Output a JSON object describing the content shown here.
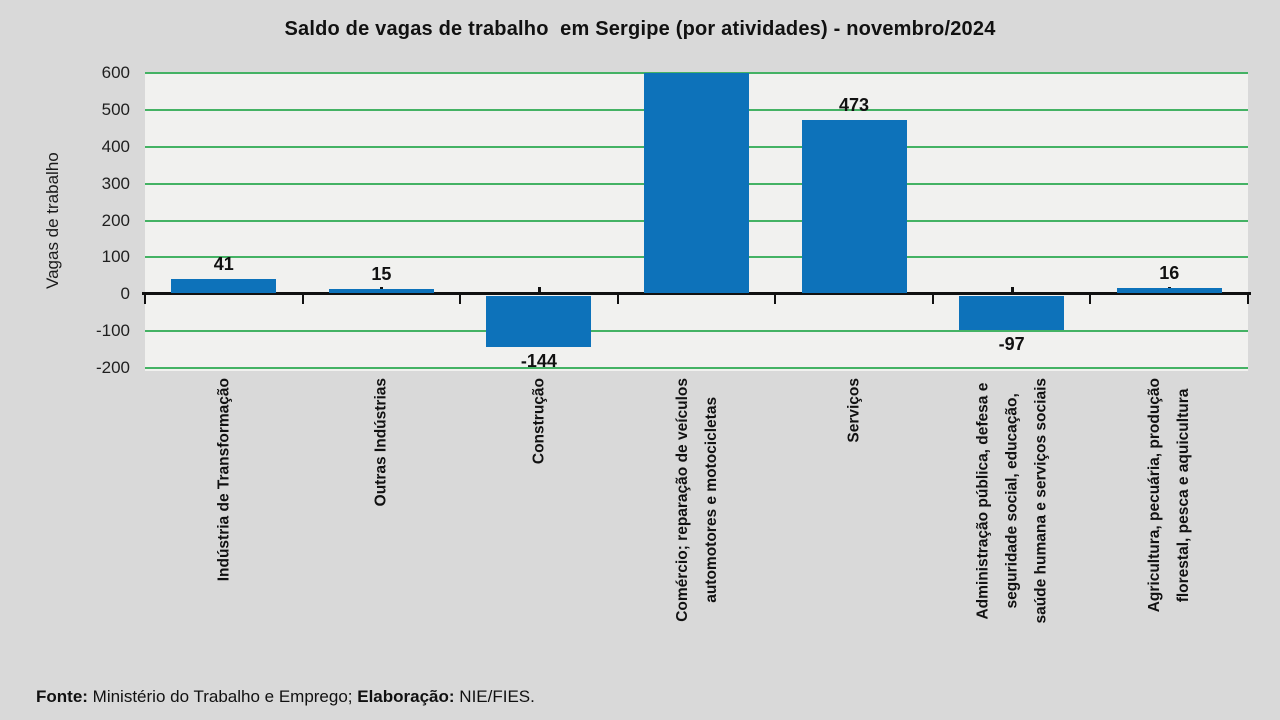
{
  "chart_data": {
    "type": "bar",
    "title": "Saldo de vagas de trabalho  em Sergipe (por atividades) - novembro/2024",
    "ylabel": "Vagas de trabalho",
    "ylim": [
      -200,
      600
    ],
    "yticks": [
      600,
      500,
      400,
      300,
      200,
      100,
      0,
      -100,
      -200
    ],
    "grid": "horizontal gridlines on",
    "legend": "none",
    "categories": [
      "Indústria de Transformação",
      "Outras Indústrias",
      "Construção",
      "Comércio; reparação de veículos\nautomotores e motocicletas",
      "Serviços",
      "Administração pública, defesa e\nseguridade social, educação,\nsaúde humana e serviços sociais",
      "Agricultura, pecuária, produção\nflorestal, pesca e aquicultura"
    ],
    "values": [
      41,
      15,
      -144,
      600,
      473,
      -97,
      16
    ],
    "data_labels": [
      "41",
      "15",
      "-144",
      "",
      "473",
      "-97",
      "16"
    ],
    "clipped_bar_indices": [
      3
    ],
    "colors": {
      "bar": "#0d72ba",
      "gridline": "#44b264",
      "axis": "#111111",
      "plot_bg": "#f1f1ef",
      "canvas_bg": "#d9d9d9",
      "text": "#111111"
    }
  },
  "footer": {
    "segments": [
      {
        "text": "Fonte:",
        "bold": true
      },
      {
        "text": " Ministério do Trabalho e Emprego; ",
        "bold": false
      },
      {
        "text": "Elaboração:",
        "bold": true
      },
      {
        "text": " NIE/FIES.",
        "bold": false
      }
    ]
  }
}
